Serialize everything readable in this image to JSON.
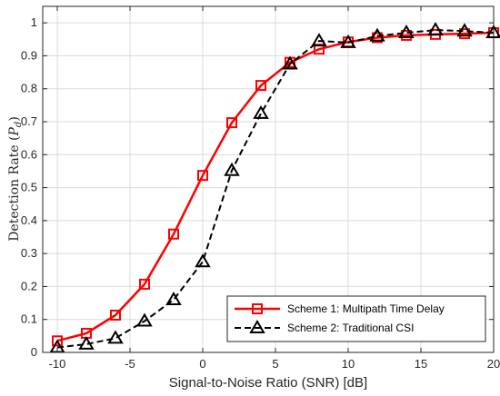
{
  "chart_data": {
    "type": "line",
    "xlabel": "Signal-to-Noise Ratio (SNR) [dB]",
    "ylabel": "Detection Rate (P",
    "ylabel_sub": "d",
    "ylabel_close": ")",
    "xlim": [
      -11,
      20
    ],
    "ylim": [
      0,
      1.05
    ],
    "xticks": [
      -10,
      -5,
      0,
      5,
      10,
      15,
      20
    ],
    "yticks": [
      0,
      0.1,
      0.2,
      0.3,
      0.4,
      0.5,
      0.6,
      0.7,
      0.8,
      0.9,
      1
    ],
    "grid": true,
    "legend_position": "bottom-right",
    "series": [
      {
        "name": "Scheme 1: Multipath Time Delay",
        "color": "#ff0000",
        "line_style": "solid",
        "marker": "square",
        "x": [
          -10,
          -8,
          -6,
          -4,
          -2,
          0,
          2,
          4,
          6,
          8,
          10,
          12,
          14,
          16,
          18,
          20
        ],
        "y": [
          0.035,
          0.058,
          0.113,
          0.207,
          0.359,
          0.537,
          0.697,
          0.81,
          0.88,
          0.92,
          0.942,
          0.955,
          0.962,
          0.965,
          0.967,
          0.97
        ]
      },
      {
        "name": "Scheme 2: Traditional CSI",
        "color": "#000000",
        "line_style": "dashed",
        "marker": "triangle",
        "x": [
          -10,
          -8,
          -6,
          -4,
          -2,
          0,
          2,
          4,
          6,
          8,
          10,
          12,
          14,
          16,
          18,
          20
        ],
        "y": [
          0.015,
          0.025,
          0.043,
          0.095,
          0.16,
          0.275,
          0.552,
          0.725,
          0.875,
          0.945,
          0.94,
          0.96,
          0.97,
          0.978,
          0.975,
          0.97
        ]
      }
    ]
  }
}
